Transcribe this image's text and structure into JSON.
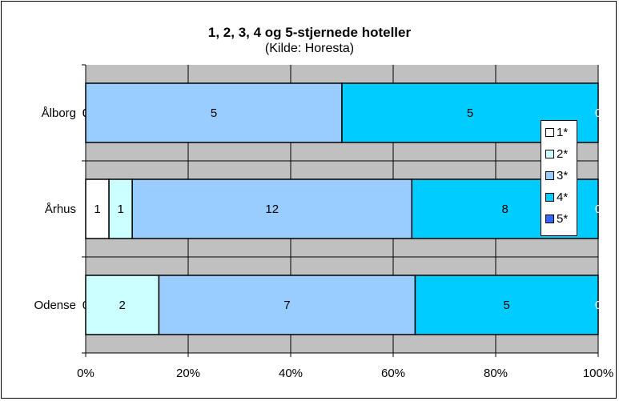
{
  "chart_data": {
    "type": "bar",
    "orientation": "horizontal",
    "stacked": "percent",
    "title": "1, 2, 3, 4 og 5-stjernede hoteller",
    "subtitle": "(Kilde: Horesta)",
    "categories": [
      "Ålborg",
      "Århus",
      "Odense"
    ],
    "series": [
      {
        "name": "1*",
        "color": "#ffffff",
        "values": [
          0,
          1,
          0
        ]
      },
      {
        "name": "2*",
        "color": "#ccffff",
        "values": [
          0,
          1,
          2
        ]
      },
      {
        "name": "3*",
        "color": "#99ccff",
        "values": [
          5,
          12,
          7
        ]
      },
      {
        "name": "4*",
        "color": "#00ccff",
        "values": [
          5,
          8,
          5
        ]
      },
      {
        "name": "5*",
        "color": "#3366ff",
        "values": [
          0,
          0,
          0
        ]
      }
    ],
    "xlim": [
      0,
      100
    ],
    "xticks": [
      "0%",
      "20%",
      "40%",
      "60%",
      "80%",
      "100%"
    ],
    "grid": true,
    "plot_background": "#c0c0c0",
    "legend_position": "right"
  }
}
